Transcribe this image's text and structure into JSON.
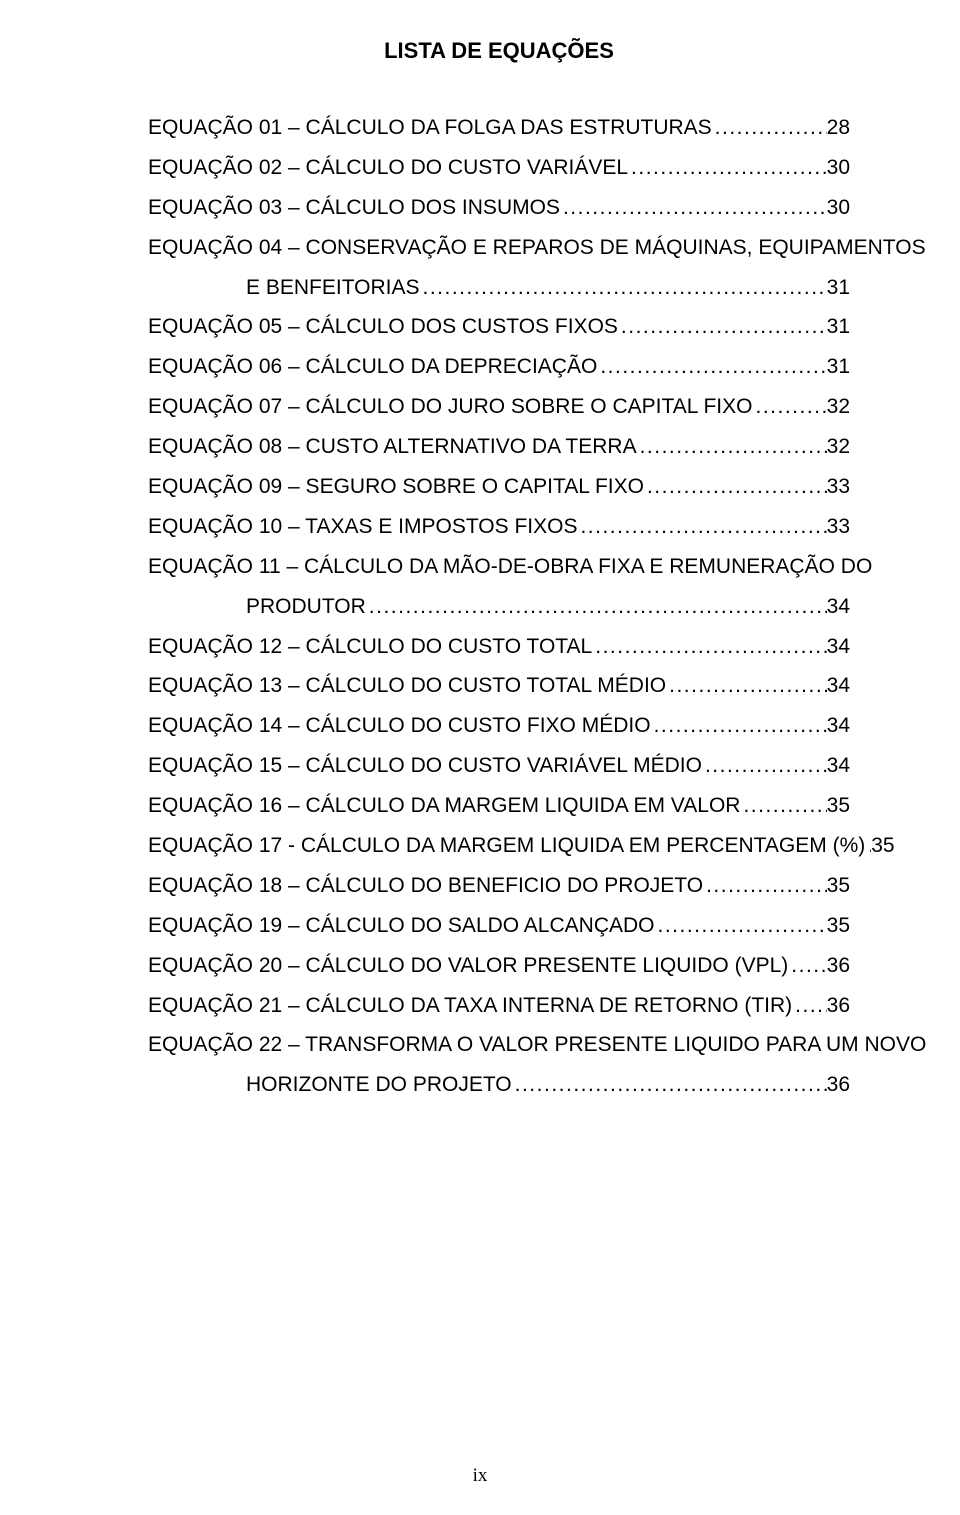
{
  "title": "LISTA DE EQUAÇÕES",
  "leader_fill": "..........................................................................................................................................................................................................................",
  "page_number_bottom": "ix",
  "entries": [
    {
      "label": "EQUAÇÃO 01 – CÁLCULO DA FOLGA DAS ESTRUTURAS",
      "page": "28"
    },
    {
      "label": "EQUAÇÃO 02 – CÁLCULO DO CUSTO VARIÁVEL",
      "page": "30"
    },
    {
      "label": "EQUAÇÃO 03 – CÁLCULO DOS INSUMOS",
      "page": "30"
    },
    {
      "label": "EQUAÇÃO 04 – CONSERVAÇÃO E REPAROS  DE MÁQUINAS,  EQUIPAMENTOS",
      "cont": "E BENFEITORIAS",
      "page": "31"
    },
    {
      "label": "EQUAÇÃO 05 – CÁLCULO DOS CUSTOS FIXOS",
      "page": "31"
    },
    {
      "label": "EQUAÇÃO 06 – CÁLCULO DA DEPRECIAÇÃO",
      "page": "31"
    },
    {
      "label": "EQUAÇÃO 07 – CÁLCULO DO JURO SOBRE O CAPITAL FIXO",
      "page": "32"
    },
    {
      "label": "EQUAÇÃO 08 – CUSTO ALTERNATIVO DA TERRA",
      "page": "32"
    },
    {
      "label": "EQUAÇÃO 09 – SEGURO SOBRE O CAPITAL FIXO",
      "page": "33"
    },
    {
      "label": "EQUAÇÃO 10 – TAXAS E IMPOSTOS FIXOS",
      "page": "33"
    },
    {
      "label": "EQUAÇÃO 11 – CÁLCULO   DA  MÃO-DE-OBRA   FIXA  E  REMUNERAÇÃO  DO",
      "cont": "PRODUTOR",
      "page": "34"
    },
    {
      "label": "EQUAÇÃO 12 – CÁLCULO DO CUSTO TOTAL",
      "page": "34"
    },
    {
      "label": "EQUAÇÃO 13 – CÁLCULO DO CUSTO TOTAL MÉDIO",
      "page": "34"
    },
    {
      "label": "EQUAÇÃO 14 – CÁLCULO DO CUSTO FIXO MÉDIO",
      "page": "34"
    },
    {
      "label": "EQUAÇÃO 15 – CÁLCULO DO CUSTO VARIÁVEL MÉDIO",
      "page": "34"
    },
    {
      "label": "EQUAÇÃO 16 – CÁLCULO DA MARGEM LIQUIDA EM VALOR",
      "page": "35"
    },
    {
      "label": "EQUAÇÃO 17 - CÁLCULO DA MARGEM LIQUIDA EM PERCENTAGEM (%)",
      "page": "35"
    },
    {
      "label": "EQUAÇÃO 18 – CÁLCULO DO BENEFICIO DO PROJETO",
      "page": "35"
    },
    {
      "label": "EQUAÇÃO 19 – CÁLCULO DO SALDO ALCANÇADO",
      "page": "35"
    },
    {
      "label": "EQUAÇÃO 20 – CÁLCULO DO VALOR PRESENTE LIQUIDO (VPL)",
      "page": "36"
    },
    {
      "label": "EQUAÇÃO 21 – CÁLCULO DA TAXA INTERNA DE RETORNO (TIR)",
      "page": "36"
    },
    {
      "label": "EQUAÇÃO 22 – TRANSFORMA  O  VALOR PRESENTE  LIQUIDO PARA UM NOVO",
      "cont": "HORIZONTE DO PROJETO",
      "page": "36"
    }
  ]
}
